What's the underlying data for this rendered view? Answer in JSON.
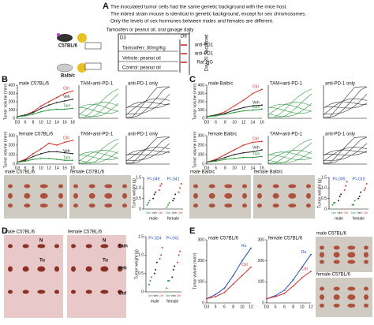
{
  "panel_a": {
    "label": "A",
    "notes": [
      "The inoculated tumor cells had the same genetic background with the mice host.",
      "The inbred strain mouse is identical in genetic background, except for sex chromosomes.",
      "Only the levels of sex hormones between males and females are different."
    ],
    "strains": [
      "C57BL/6",
      "Balb/c"
    ],
    "treatment": "Tamoxifen or peanut oil, oral gavage daily",
    "start": "D3",
    "antibody_day": "D6",
    "groups": [
      "Tamoxifen: 30mg/Kg",
      "Vehicle: peanut oil",
      "Control: peanut oil"
    ],
    "antibodies": [
      "anti-PD1",
      "anti-PD1",
      "Rat IgG"
    ],
    "end": "Day 20 Sacrificed"
  },
  "panel_labels": [
    "B",
    "C",
    "D",
    "E"
  ],
  "growth_charts": [
    {
      "title": "male C57BL/6",
      "ylabel": "Tumor volume (mm³)",
      "categories": [
        "D3",
        "6",
        "8",
        "10",
        "12",
        "14",
        "16",
        "18"
      ],
      "ylim": [
        0,
        400
      ],
      "yticks": [
        0,
        100,
        200,
        300,
        400
      ],
      "series": [
        {
          "name": "Ctrl",
          "color": "#e0302a",
          "values": [
            20,
            40,
            80,
            150,
            200,
            250,
            300,
            330
          ]
        },
        {
          "name": "Veh",
          "color": "#222222",
          "values": [
            20,
            40,
            70,
            120,
            160,
            190,
            210,
            230
          ]
        },
        {
          "name": "Tam",
          "color": "#2e9a3e",
          "values": [
            20,
            30,
            50,
            80,
            100,
            110,
            110,
            120
          ]
        }
      ]
    },
    {
      "title": "female C57BL/6",
      "ylabel": "Tumor volume (mm³)",
      "categories": [
        "D3",
        "6",
        "8",
        "10",
        "12",
        "14",
        "16",
        "18"
      ],
      "ylim": [
        0,
        300
      ],
      "yticks": [
        0,
        100,
        200,
        300
      ],
      "series": [
        {
          "name": "Ctrl",
          "color": "#e0302a",
          "values": [
            20,
            50,
            110,
            160,
            220,
            200,
            230,
            250
          ]
        },
        {
          "name": "Veh",
          "color": "#222222",
          "values": [
            20,
            40,
            80,
            110,
            130,
            130,
            120,
            110
          ]
        },
        {
          "name": "Tam",
          "color": "#2e9a3e",
          "values": [
            20,
            30,
            50,
            60,
            60,
            50,
            40,
            40
          ]
        }
      ]
    },
    {
      "title": "male Balb/c",
      "ylabel": "Tumor volume (mm³)",
      "categories": [
        "D3",
        "6",
        "8",
        "10",
        "12",
        "14",
        "16"
      ],
      "ylim": [
        0,
        400
      ],
      "yticks": [
        0,
        100,
        200,
        300,
        400
      ],
      "series": [
        {
          "name": "Ctrl",
          "color": "#e0302a",
          "values": [
            20,
            40,
            80,
            150,
            220,
            300,
            350
          ]
        },
        {
          "name": "Veh",
          "color": "#222222",
          "values": [
            20,
            40,
            60,
            100,
            130,
            150,
            160
          ]
        },
        {
          "name": "Tam",
          "color": "#2e9a3e",
          "values": [
            20,
            30,
            50,
            70,
            90,
            100,
            110
          ]
        }
      ]
    },
    {
      "title": "female Balb/c",
      "ylabel": "Tumor volume (mm³)",
      "categories": [
        "D3",
        "6",
        "8",
        "10",
        "12",
        "14",
        "16"
      ],
      "ylim": [
        0,
        300
      ],
      "yticks": [
        0,
        100,
        200,
        300
      ],
      "series": [
        {
          "name": "Ctrl",
          "color": "#e0302a",
          "values": [
            20,
            50,
            100,
            150,
            200,
            230,
            240
          ]
        },
        {
          "name": "Veh",
          "color": "#222222",
          "values": [
            20,
            40,
            70,
            100,
            120,
            130,
            150
          ]
        },
        {
          "name": "Tam",
          "color": "#2e9a3e",
          "values": [
            20,
            30,
            50,
            60,
            70,
            70,
            80
          ]
        }
      ]
    },
    {
      "title": "male C57BL/6",
      "ylabel": "Tumor volume (mm³)",
      "categories": [
        "D3",
        "5",
        "6",
        "8",
        "10",
        "12"
      ],
      "ylim": [
        0,
        300
      ],
      "yticks": [
        0,
        100,
        200,
        300
      ],
      "series": [
        {
          "name": "Ru",
          "color": "#2050c8",
          "values": [
            20,
            40,
            70,
            130,
            200,
            260
          ]
        },
        {
          "name": "Ctrl",
          "color": "#e0302a",
          "values": [
            20,
            30,
            50,
            90,
            130,
            170
          ]
        }
      ]
    },
    {
      "title": "female C57BL/6",
      "categories": [
        "D3",
        "5",
        "6",
        "8",
        "10",
        "12"
      ],
      "ylim": [
        0,
        300
      ],
      "yticks": [
        0,
        100,
        200,
        300
      ],
      "series": [
        {
          "name": "Ru",
          "color": "#2050c8",
          "values": [
            20,
            35,
            60,
            110,
            170,
            230
          ]
        },
        {
          "name": "Ctrl",
          "color": "#e0302a",
          "values": [
            20,
            30,
            45,
            80,
            120,
            150
          ]
        }
      ]
    }
  ],
  "spaghetti_titles": [
    "TAM+anti-PD-1",
    "anti-PD-1 only",
    "TAM+anti-PD-1",
    "anti-PD-1 only",
    "TAM+anti-PD-1",
    "anti-PD-1 only",
    "TAM+anti-PD-1",
    "anti-PD-1 only"
  ],
  "photo_captions": [
    "male C57BL/6",
    "female C57BL/6",
    "male Balb/c",
    "female Balb/c",
    "male C57BL/6",
    "female C57BL/6",
    "male C57BL/6",
    "female C57BL/6"
  ],
  "histology_labels": [
    "N",
    "Tu",
    "N",
    "Tu",
    "Veh",
    "Tam",
    "Ctrl"
  ],
  "dot_plots": [
    {
      "ylabel": "Tumor weight (g)",
      "ylim": [
        0,
        1.5
      ],
      "yticks": [
        0,
        0.5,
        {
          "value": 1,
          "label": "1.0"
        },
        1.5
      ],
      "groups": [
        "Tam",
        "Veh",
        "Ctrl"
      ],
      "colors": [
        "#2e9a3e",
        "#222222",
        "#e0302a"
      ],
      "sexes": [
        {
          "name": "male",
          "p": "P=.049",
          "values": [
            [
              0.2,
              0.3,
              0.4
            ],
            [
              0.5,
              0.7,
              0.8
            ],
            [
              0.9,
              1.1,
              1.2
            ]
          ]
        },
        {
          "name": "female",
          "p": "P=.041",
          "values": [
            [
              0.1,
              0.2,
              0.3
            ],
            [
              0.4,
              0.5,
              0.7
            ],
            [
              0.8,
              1.0,
              1.2
            ]
          ]
        }
      ]
    },
    {
      "ylabel": "Tumor weight (g)",
      "ylim": [
        0,
        1.5
      ],
      "yticks": [
        0,
        0.5,
        {
          "value": 1,
          "label": "1.0"
        },
        1.5
      ],
      "groups": [
        "Tam",
        "Veh",
        "Ctrl"
      ],
      "colors": [
        "#2e9a3e",
        "#222222",
        "#e0302a"
      ],
      "sexes": [
        {
          "name": "male",
          "p": "P=.009",
          "values": [
            [
              0.2,
              0.3,
              0.3
            ],
            [
              0.4,
              0.6,
              0.7
            ],
            [
              0.9,
              1.1,
              1.3
            ]
          ]
        },
        {
          "name": "female",
          "p": "P=.010",
          "values": [
            [
              0.2,
              0.2,
              0.4
            ],
            [
              0.5,
              0.6,
              0.8
            ],
            [
              0.9,
              1.0,
              1.2
            ]
          ]
        }
      ]
    },
    {
      "ylabel": "Tumor weight (g)",
      "ylim": [
        0,
        1.5
      ],
      "yticks": [
        0,
        0.5,
        {
          "value": 1,
          "label": "1.0"
        },
        1.5
      ],
      "groups": [
        "Tam",
        "Veh",
        "Ctrl"
      ],
      "colors": [
        "#2e9a3e",
        "#222222",
        "#e0302a"
      ],
      "sexes": [
        {
          "name": "male",
          "p": "P=.024",
          "values": [
            [
              0.2,
              0.3,
              0.4
            ],
            [
              0.5,
              0.6,
              0.8
            ],
            [
              0.9,
              1.0,
              1.2
            ]
          ]
        },
        {
          "name": "female",
          "p": "P=.041",
          "values": [
            [
              0.1,
              0.3,
              0.3
            ],
            [
              0.4,
              0.6,
              0.7
            ],
            [
              0.8,
              1.0,
              1.1
            ]
          ]
        }
      ]
    }
  ]
}
